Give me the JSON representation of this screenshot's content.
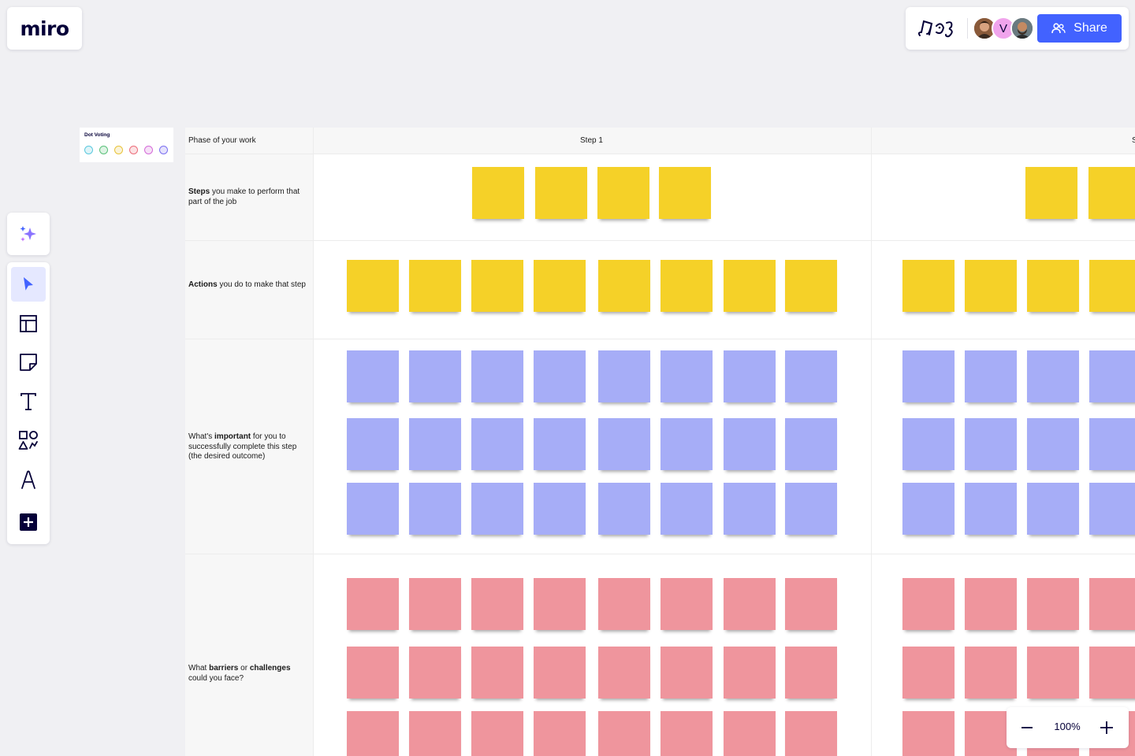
{
  "app": {
    "logo": "miro"
  },
  "header": {
    "share_label": "Share",
    "collaborators": [
      {
        "name": "avatar-photo-1",
        "initial": ""
      },
      {
        "name": "avatar-initial",
        "initial": "V"
      },
      {
        "name": "avatar-photo-2",
        "initial": ""
      }
    ]
  },
  "toolbar": {
    "tools": [
      {
        "id": "select",
        "icon": "cursor-icon",
        "active": true
      },
      {
        "id": "templates",
        "icon": "templates-icon",
        "active": false
      },
      {
        "id": "sticky-note",
        "icon": "sticky-note-icon",
        "active": false
      },
      {
        "id": "text",
        "icon": "text-icon",
        "active": false
      },
      {
        "id": "shapes",
        "icon": "shapes-icon",
        "active": false
      },
      {
        "id": "pen",
        "icon": "pen-icon",
        "active": false
      },
      {
        "id": "more",
        "icon": "plus-square-icon",
        "active": false
      }
    ]
  },
  "dot_voting": {
    "title": "Dot Voting",
    "dot_colors": [
      "#5ac8de",
      "#5ac17a",
      "#e8c33a",
      "#ec6d7a",
      "#d46bd8",
      "#7b6ff0"
    ]
  },
  "board": {
    "header": {
      "phase": "Phase of your work",
      "step1": "Step 1",
      "step2": "S"
    },
    "rows": {
      "steps": {
        "bold": "Steps",
        "rest": " you make to perform that part of the job"
      },
      "actions": {
        "bold": "Actions",
        "rest": " you do to make that step"
      },
      "important": {
        "pre": "What's ",
        "bold": "important",
        "rest": " for you to successfully complete this step (the desired outcome)"
      },
      "barriers": {
        "pre": "What ",
        "bold1": "barriers",
        "mid": " or ",
        "bold2": "challenges",
        "rest": " could you face?"
      }
    },
    "colors": {
      "yellow": "#f5d128",
      "blue": "#a6adf7",
      "red": "#ef959d"
    }
  },
  "zoom": {
    "level": "100%"
  }
}
